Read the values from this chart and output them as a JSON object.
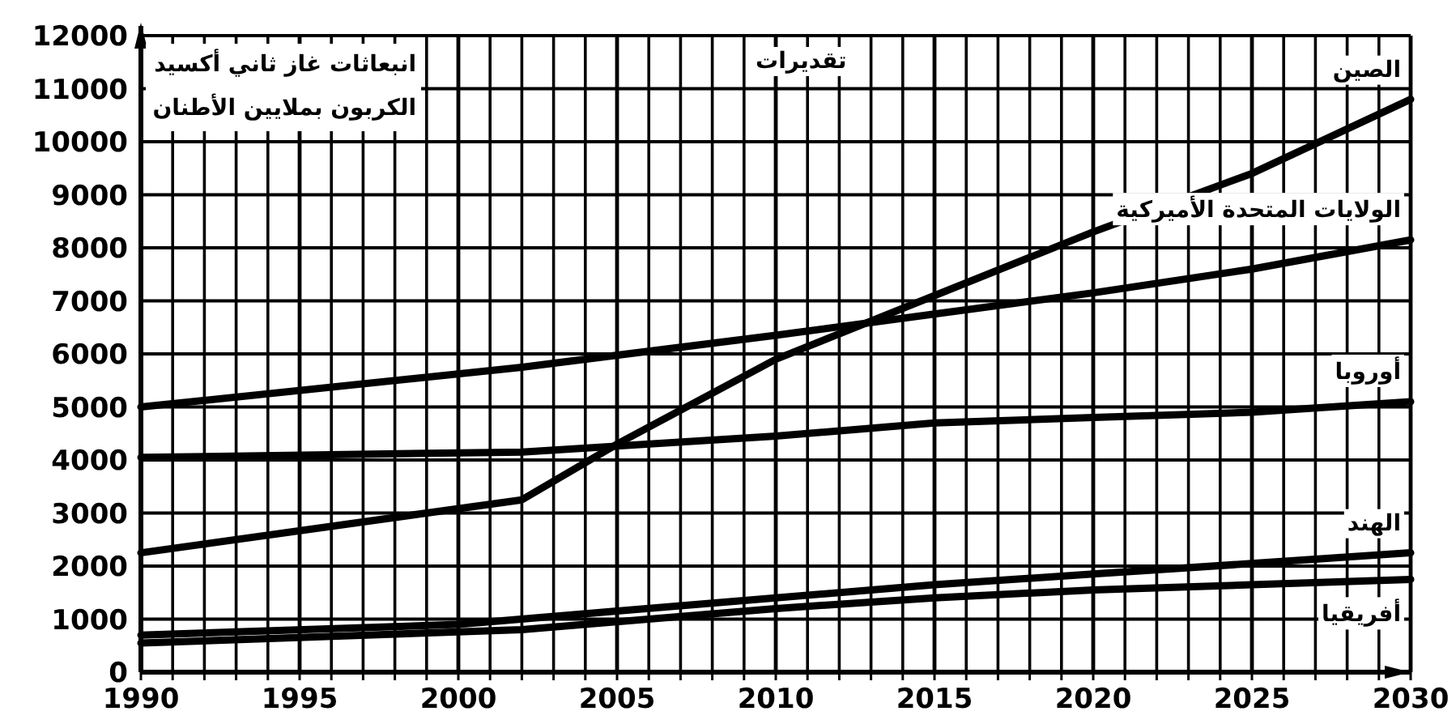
{
  "chart_data": {
    "type": "line",
    "ylabel": "انبعاثات غاز ثاني أكسيد الكربون بملايين الأطنان",
    "annotations": [
      "تقديرات"
    ],
    "series": [
      {
        "name": "الصين",
        "color": "#000000",
        "x": [
          1990,
          2002,
          2005,
          2010,
          2015,
          2020,
          2025,
          2030
        ],
        "values": [
          2250,
          3250,
          4300,
          5900,
          7100,
          8300,
          9400,
          10800
        ]
      },
      {
        "name": "الولايات المتحدة الأميركية",
        "color": "#000000",
        "x": [
          1990,
          2002,
          2010,
          2015,
          2020,
          2025,
          2030
        ],
        "values": [
          5000,
          5750,
          6350,
          6750,
          7150,
          7600,
          8150
        ]
      },
      {
        "name": "أوروبا",
        "color": "#000000",
        "x": [
          1990,
          2002,
          2010,
          2015,
          2020,
          2025,
          2030
        ],
        "values": [
          4050,
          4150,
          4450,
          4700,
          4800,
          4900,
          5100
        ]
      },
      {
        "name": "الهند",
        "color": "#000000",
        "x": [
          1990,
          2000,
          2005,
          2010,
          2015,
          2020,
          2025,
          2030
        ],
        "values": [
          700,
          900,
          1150,
          1400,
          1650,
          1850,
          2050,
          2250
        ]
      },
      {
        "name": "أفريقيا",
        "color": "#000000",
        "x": [
          1990,
          2002,
          2010,
          2015,
          2020,
          2025,
          2030
        ],
        "values": [
          550,
          800,
          1200,
          1400,
          1550,
          1650,
          1750
        ]
      }
    ],
    "xlim": [
      1990,
      2030
    ],
    "xticks": [
      1990,
      {
        "value": 1991,
        "label": null
      },
      {
        "value": 1992,
        "label": null
      },
      {
        "value": 1993,
        "label": null
      },
      {
        "value": 1994,
        "label": null
      },
      1995,
      {
        "value": 1996,
        "label": null
      },
      {
        "value": 1997,
        "label": null
      },
      {
        "value": 1998,
        "label": null
      },
      {
        "value": 1999,
        "label": null
      },
      2000,
      {
        "value": 2001,
        "label": null
      },
      {
        "value": 2002,
        "label": null
      },
      {
        "value": 2003,
        "label": null
      },
      {
        "value": 2004,
        "label": null
      },
      2005,
      {
        "value": 2006,
        "label": null
      },
      {
        "value": 2007,
        "label": null
      },
      {
        "value": 2008,
        "label": null
      },
      {
        "value": 2009,
        "label": null
      },
      2010,
      {
        "value": 2011,
        "label": null
      },
      {
        "value": 2012,
        "label": null
      },
      {
        "value": 2013,
        "label": null
      },
      {
        "value": 2014,
        "label": null
      },
      2015,
      {
        "value": 2016,
        "label": null
      },
      {
        "value": 2017,
        "label": null
      },
      {
        "value": 2018,
        "label": null
      },
      {
        "value": 2019,
        "label": null
      },
      2020,
      {
        "value": 2021,
        "label": null
      },
      {
        "value": 2022,
        "label": null
      },
      {
        "value": 2023,
        "label": null
      },
      {
        "value": 2024,
        "label": null
      },
      2025,
      {
        "value": 2026,
        "label": null
      },
      {
        "value": 2027,
        "label": null
      },
      {
        "value": 2028,
        "label": null
      },
      {
        "value": 2029,
        "label": null
      },
      2030
    ],
    "ylim": [
      0,
      12000
    ],
    "yticks": [
      0,
      1000,
      2000,
      3000,
      4000,
      5000,
      6000,
      7000,
      8000,
      9000,
      10000,
      11000,
      12000
    ],
    "grid": true,
    "marker": "none",
    "line_style": "solid"
  }
}
